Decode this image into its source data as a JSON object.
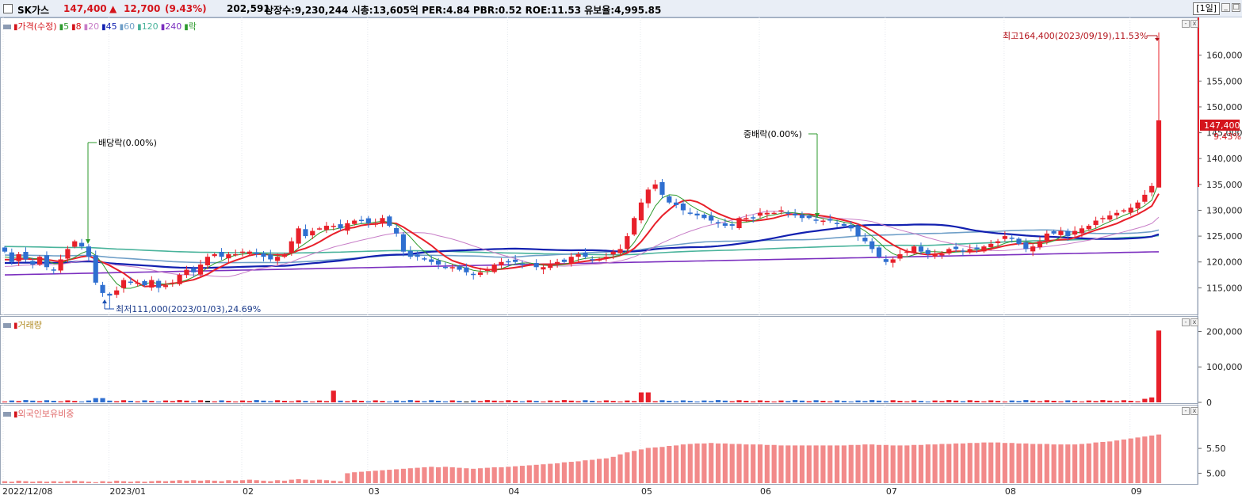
{
  "header": {
    "name": "SK가스",
    "price": "147,400",
    "arrow": "▲",
    "change": "12,700",
    "change_pct": "(9.43%)",
    "volume": "202,591",
    "stats": "상장수:9,230,244 시총:13,605억 PER:4.84 PBR:0.52 ROE:11.53 유보율:4,995.85",
    "period": "[1일]"
  },
  "price_legend": {
    "items": [
      {
        "label": "가격(수정)",
        "color": "#d4141b"
      },
      {
        "label": "5",
        "color": "#2e9a2e"
      },
      {
        "label": "8",
        "color": "#d4141b"
      },
      {
        "label": "20",
        "color": "#c77dc7"
      },
      {
        "label": "45",
        "color": "#1220b0"
      },
      {
        "label": "60",
        "color": "#6f9fc8"
      },
      {
        "label": "120",
        "color": "#49b39b"
      },
      {
        "label": "240",
        "color": "#7b2fbf"
      },
      {
        "label": "락",
        "color": "#2e9a2e"
      }
    ]
  },
  "annotations": {
    "high": "최고164,400(2023/09/19),11.53%",
    "low": "최저111,000(2023/01/03),24.69%",
    "dividend": "배당락(0.00%)",
    "interim_dividend": "중배락(0.00%)",
    "current_price_tag": "147,400",
    "current_pct_tag": "9.43%"
  },
  "volume_panel": {
    "title": "거래량",
    "ticks": [
      "200,000",
      "100,000",
      "0"
    ]
  },
  "foreign_panel": {
    "title": "외국인보유비중",
    "ticks": [
      "5.50",
      "5.00"
    ]
  },
  "x_axis": [
    "2022/12/08",
    "2023/01",
    "02",
    "03",
    "04",
    "05",
    "06",
    "07",
    "08",
    "09"
  ],
  "colors": {
    "up": "#e8202a",
    "down": "#2f6fd0",
    "foreign_bar": "#f28a8a"
  },
  "chart_data": {
    "type": "candlestick",
    "price_axis_ticks": [
      115000,
      120000,
      125000,
      130000,
      135000,
      140000,
      145000,
      150000,
      155000,
      160000
    ],
    "price_range": [
      110000,
      167000
    ],
    "close_series_estimated": [
      122000,
      120000,
      121500,
      120500,
      119500,
      121000,
      119000,
      118500,
      120500,
      122500,
      124000,
      123000,
      121000,
      116000,
      114000,
      113500,
      114500,
      116500,
      116000,
      116000,
      115500,
      116500,
      115000,
      115500,
      116000,
      117500,
      118500,
      118000,
      119500,
      121000,
      121500,
      121000,
      121500,
      121500,
      122000,
      122000,
      121500,
      121000,
      120500,
      121000,
      121500,
      124000,
      126500,
      125000,
      126000,
      126500,
      127000,
      127000,
      126500,
      127500,
      128000,
      128000,
      127500,
      127500,
      128500,
      127000,
      125500,
      122000,
      121000,
      121000,
      120500,
      120000,
      119500,
      119000,
      119000,
      118500,
      118000,
      117500,
      118000,
      118500,
      119500,
      120000,
      120000,
      120000,
      119500,
      119500,
      119000,
      119000,
      119500,
      120000,
      120000,
      121000,
      121500,
      121000,
      120500,
      120500,
      121000,
      122000,
      122500,
      125000,
      128500,
      131500,
      134000,
      135000,
      133000,
      131500,
      131000,
      130000,
      129500,
      129000,
      128500,
      128000,
      127500,
      127000,
      127000,
      128500,
      128500,
      128500,
      129500,
      129500,
      129500,
      130000,
      129500,
      129000,
      128500,
      128500,
      128000,
      128000,
      128000,
      127500,
      127000,
      126500,
      125000,
      124000,
      122500,
      121000,
      120000,
      120500,
      121500,
      122000,
      123000,
      122000,
      121500,
      121500,
      121500,
      122500,
      122500,
      122000,
      122500,
      122500,
      123000,
      123500,
      124000,
      125000,
      124500,
      123500,
      122500,
      123000,
      124000,
      125500,
      125500,
      126000,
      125000,
      126000,
      126500,
      127000,
      128000,
      128500,
      129000,
      129500,
      130000,
      130500,
      131500,
      133000,
      134700,
      147400
    ],
    "high_point": {
      "value": 164400,
      "date": "2023/09/19"
    },
    "low_point": {
      "value": 111000,
      "date": "2023/01/03"
    },
    "last_close": 147400,
    "volume_axis_ticks": [
      0,
      100000,
      200000
    ],
    "last_volume": 202591,
    "foreign_ratio_axis_ticks": [
      5.0,
      5.5
    ],
    "foreign_ratio_range": [
      4.8,
      6.3
    ],
    "foreign_ratio_series_estimated": [
      4.84,
      4.83,
      4.85,
      4.84,
      4.83,
      4.84,
      4.83,
      4.84,
      4.83,
      4.84,
      4.85,
      4.84,
      4.83,
      4.82,
      4.84,
      4.83,
      4.85,
      4.84,
      4.83,
      4.84,
      4.83,
      4.84,
      4.85,
      4.84,
      4.85,
      4.86,
      4.85,
      4.86,
      4.85,
      4.86,
      4.85,
      4.84,
      4.86,
      4.85,
      4.86,
      4.87,
      4.86,
      4.85,
      4.84,
      4.86,
      4.85,
      4.87,
      4.88,
      4.87,
      4.86,
      4.87,
      4.86,
      4.85,
      4.84,
      5.0,
      5.02,
      5.03,
      5.04,
      5.05,
      5.06,
      5.07,
      5.08,
      5.09,
      5.1,
      5.11,
      5.12,
      5.13,
      5.12,
      5.13,
      5.12,
      5.11,
      5.1,
      5.09,
      5.1,
      5.11,
      5.12,
      5.12,
      5.13,
      5.14,
      5.15,
      5.16,
      5.17,
      5.18,
      5.19,
      5.2,
      5.22,
      5.23,
      5.24,
      5.26,
      5.27,
      5.29,
      5.3,
      5.33,
      5.38,
      5.42,
      5.45,
      5.48,
      5.51,
      5.52,
      5.53,
      5.55,
      5.56,
      5.58,
      5.59,
      5.6,
      5.6,
      5.61,
      5.6,
      5.6,
      5.59,
      5.59,
      5.58,
      5.58,
      5.58,
      5.57,
      5.57,
      5.56,
      5.56,
      5.56,
      5.56,
      5.56,
      5.56,
      5.56,
      5.56,
      5.56,
      5.56,
      5.57,
      5.57,
      5.58,
      5.58,
      5.57,
      5.57,
      5.56,
      5.56,
      5.56,
      5.57,
      5.57,
      5.58,
      5.58,
      5.59,
      5.59,
      5.6,
      5.6,
      5.61,
      5.61,
      5.62,
      5.62,
      5.62,
      5.61,
      5.61,
      5.6,
      5.6,
      5.59,
      5.59,
      5.59,
      5.58,
      5.58,
      5.58,
      5.58,
      5.59,
      5.6,
      5.62,
      5.63,
      5.64,
      5.66,
      5.68,
      5.7,
      5.72,
      5.74,
      5.76,
      5.78,
      5.8,
      5.82,
      5.85,
      5.87,
      5.86
    ]
  }
}
